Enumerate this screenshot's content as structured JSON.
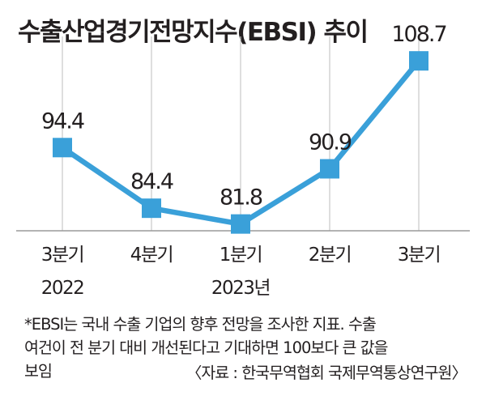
{
  "title": "수출산업경기전망지수(EBSI) 추이",
  "chart_data": {
    "type": "line",
    "categories": [
      "3분기",
      "4분기",
      "1분기",
      "2분기",
      "3분기"
    ],
    "year_labels": [
      "2022",
      "",
      "2023년",
      "",
      ""
    ],
    "values": [
      94.4,
      84.4,
      81.8,
      90.9,
      108.7
    ],
    "value_labels": [
      "94.4",
      "84.4",
      "81.8",
      "90.9",
      "108.7"
    ],
    "title": "수출산업경기전망지수(EBSI) 추이",
    "xlabel": "",
    "ylabel": "",
    "ylim": [
      70,
      115
    ],
    "grid": "vertical",
    "legend": "none",
    "line_color": "#3aa0d9",
    "grid_color": "#c8c8c8"
  },
  "footnote": {
    "lines": [
      "*EBSI는 국내 수출 기업의 향후 전망을 조사한 지표. 수출",
      "여건이 전 분기 대비 개선된다고 기대하면 100보다 큰 값을",
      "보임"
    ],
    "source": "〈자료 : 한국무역협회 국제무역통상연구원〉"
  }
}
